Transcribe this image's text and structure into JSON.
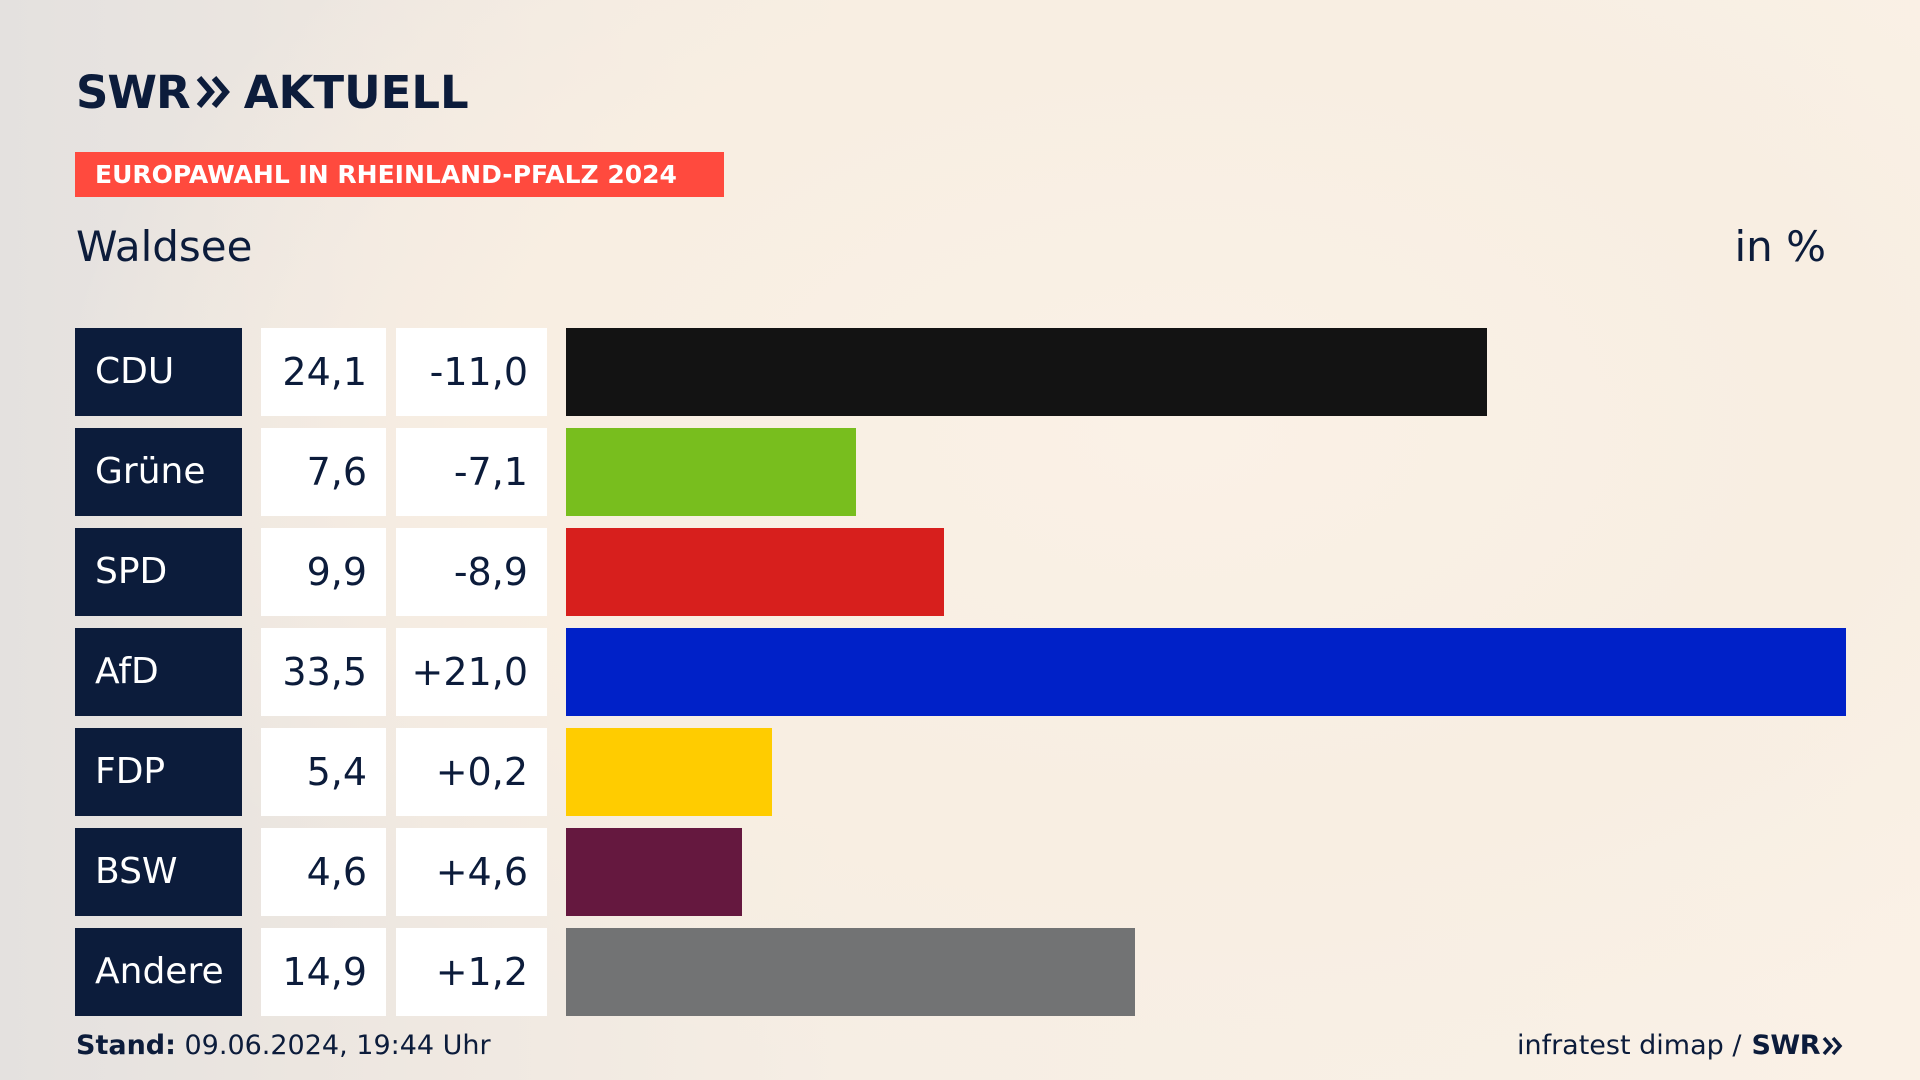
{
  "header": {
    "logo_brand": "SWR",
    "logo_product": "AKTUELL",
    "banner": "EUROPAWAHL IN RHEINLAND-PFALZ 2024",
    "subtitle": "Waldsee",
    "unit": "in %"
  },
  "colors": {
    "navy": "#0c1c3b",
    "banner_red": "#ff4a3e",
    "cell_white": "#ffffff"
  },
  "chart_data": {
    "type": "bar",
    "orientation": "horizontal",
    "title": "EUROPAWAHL IN RHEINLAND-PFALZ 2024",
    "subtitle": "Waldsee",
    "unit": "in %",
    "categories": [
      "CDU",
      "Grüne",
      "SPD",
      "AfD",
      "FDP",
      "BSW",
      "Andere"
    ],
    "values": [
      24.1,
      7.6,
      9.9,
      33.5,
      5.4,
      4.6,
      14.9
    ],
    "values_text": [
      "24,1",
      "7,6",
      "9,9",
      "33,5",
      "5,4",
      "4,6",
      "14,9"
    ],
    "changes": [
      -11.0,
      -7.1,
      -8.9,
      21.0,
      0.2,
      4.6,
      1.2
    ],
    "changes_text": [
      "-11,0",
      "-7,1",
      "-8,9",
      "+21,0",
      "+0,2",
      "+4,6",
      "+1,2"
    ],
    "colors": [
      "#131313",
      "#78be1e",
      "#d71f1d",
      "#0021c8",
      "#ffcc00",
      "#65183f",
      "#727374"
    ],
    "xlim": [
      0,
      33.5
    ],
    "grid": false,
    "legend": "none"
  },
  "footer": {
    "stand_label": "Stand:",
    "stand_value": " 09.06.2024, 19:44 Uhr",
    "source": "infratest dimap /",
    "source_brand": "SWR"
  }
}
